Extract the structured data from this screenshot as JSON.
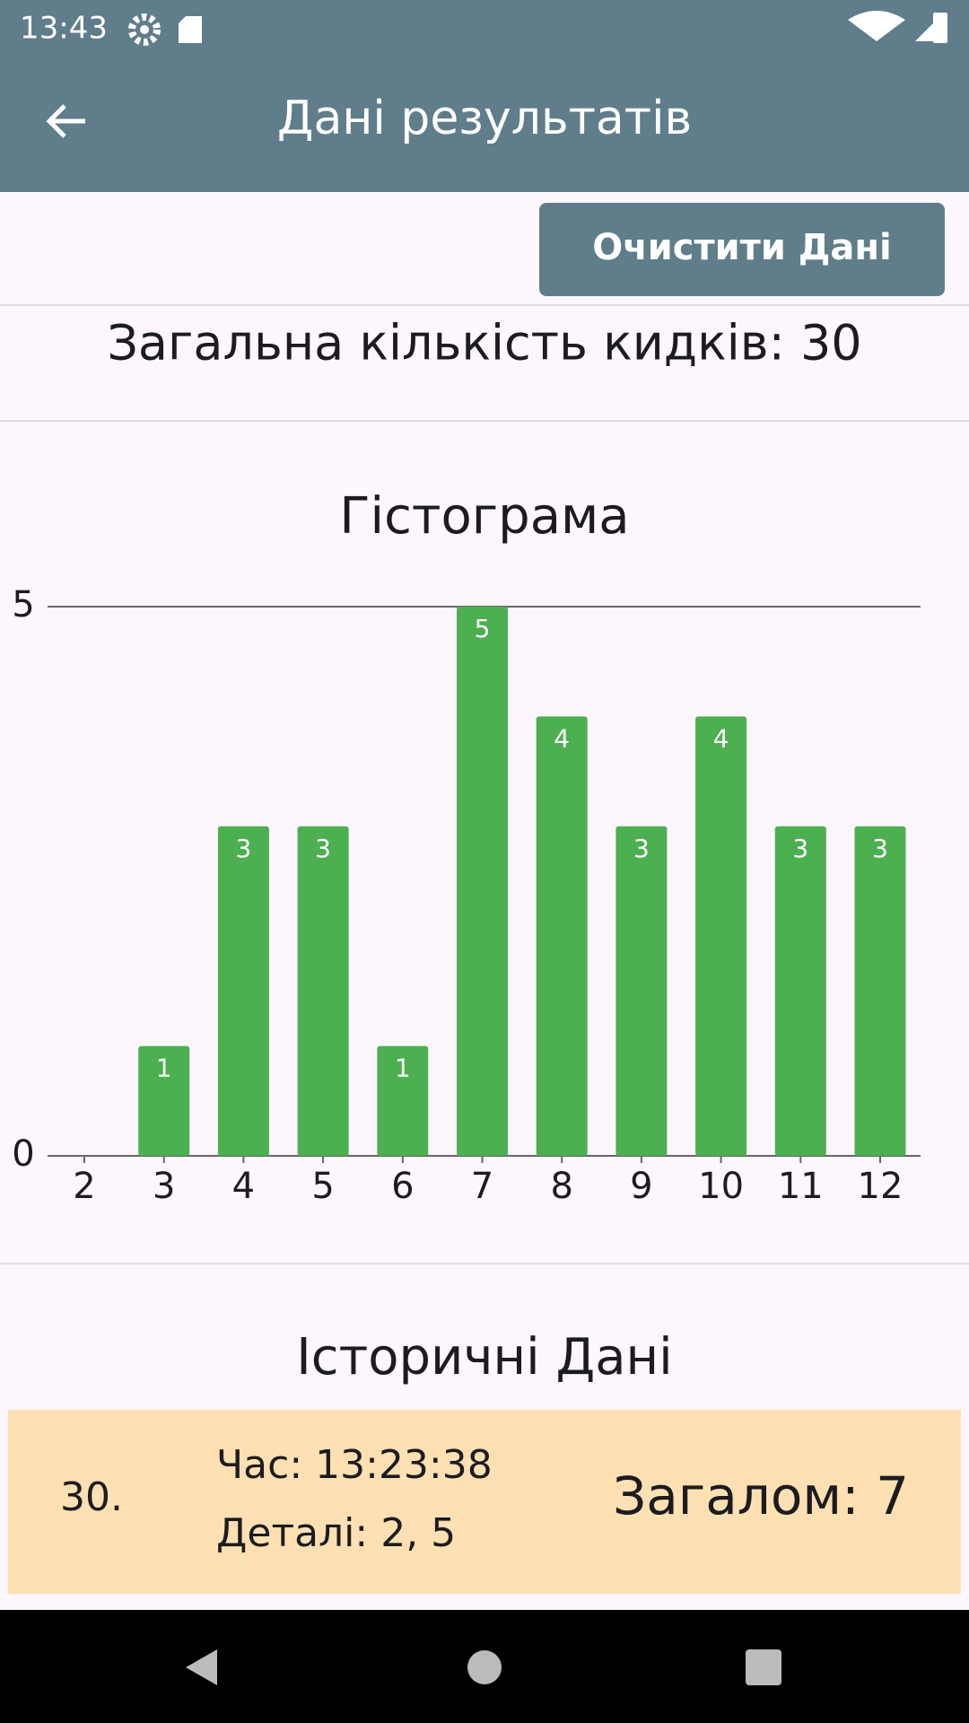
{
  "status_bar": {
    "time": "13:43"
  },
  "app_bar": {
    "title": "Дані результатів"
  },
  "clear_button": "Очистити Дані",
  "total_throws": "Загальна кількість кидків: 30",
  "chart_data": {
    "type": "bar",
    "title": "Гістограма",
    "categories": [
      "2",
      "3",
      "4",
      "5",
      "6",
      "7",
      "8",
      "9",
      "10",
      "11",
      "12"
    ],
    "values": [
      0,
      1,
      3,
      3,
      1,
      5,
      4,
      3,
      4,
      3,
      3
    ],
    "color": "#4caf50",
    "ylim": [
      0,
      5
    ],
    "yticks": [
      0,
      5
    ],
    "grid": true
  },
  "history": {
    "title": "Історичні Дані",
    "items": [
      {
        "index": "30.",
        "time": "Час: 13:23:38",
        "details": "Деталі: 2, 5",
        "total": "Загалом: 7"
      }
    ]
  }
}
